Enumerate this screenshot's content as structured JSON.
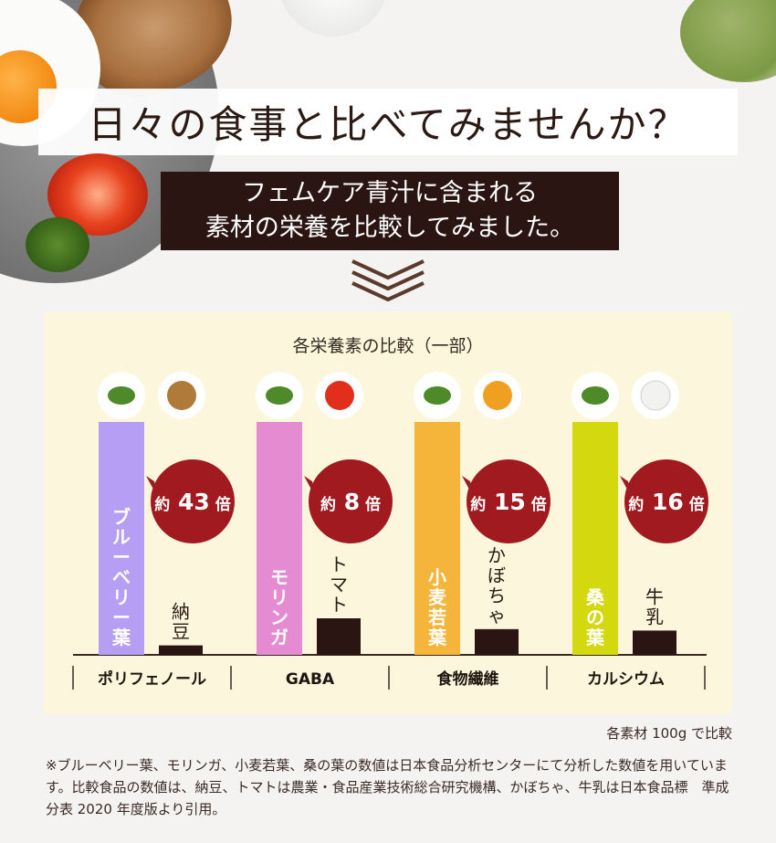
{
  "header": {
    "title": "日々の食事と比べてみませんか？",
    "subtitle_line1": "フェムケア青汁に含まれる",
    "subtitle_line2": "素材の栄養を比較してみました。"
  },
  "chart_data": {
    "type": "bar",
    "title": "各栄養素の比較（一部）",
    "groups": [
      {
        "category": "ポリフェノール",
        "ingredient": "ブルーベリー葉",
        "ingredient_icon": "blueberry-leaf-icon",
        "food": "納豆",
        "food_icon": "natto-icon",
        "ratio_label": "約",
        "ratio": 43,
        "ratio_unit": "倍",
        "ingredient_color": "#b79ef5"
      },
      {
        "category": "GABA",
        "ingredient": "モリンガ",
        "ingredient_icon": "moringa-icon",
        "food": "トマト",
        "food_icon": "tomato-icon",
        "ratio_label": "約",
        "ratio": 8,
        "ratio_unit": "倍",
        "ingredient_color": "#e48bd2"
      },
      {
        "category": "食物繊維",
        "ingredient": "小麦若葉",
        "ingredient_icon": "wheat-leaf-icon",
        "food": "かぼちゃ",
        "food_icon": "pumpkin-icon",
        "ratio_label": "約",
        "ratio": 15,
        "ratio_unit": "倍",
        "ingredient_color": "#f5b53a"
      },
      {
        "category": "カルシウム",
        "ingredient": "桑の葉",
        "ingredient_icon": "mulberry-leaf-icon",
        "food": "牛乳",
        "food_icon": "milk-icon",
        "ratio_label": "約",
        "ratio": 16,
        "ratio_unit": "倍",
        "ingredient_color": "#d4d80f"
      }
    ],
    "food_color": "#2b1512",
    "bubble_color": "#a11a1f"
  },
  "notes": {
    "basis": "各素材 100g で比較",
    "footnote": "※ブルーベリー葉、モリンガ、小麦若葉、桑の葉の数値は日本食品分析センターにて分析した数値を用いています。比較食品の数値は、納豆、トマトは農業・食品産業技術総合研究機構、かぼちゃ、牛乳は日本食品標　準成分表 2020 年度版より引用。"
  }
}
